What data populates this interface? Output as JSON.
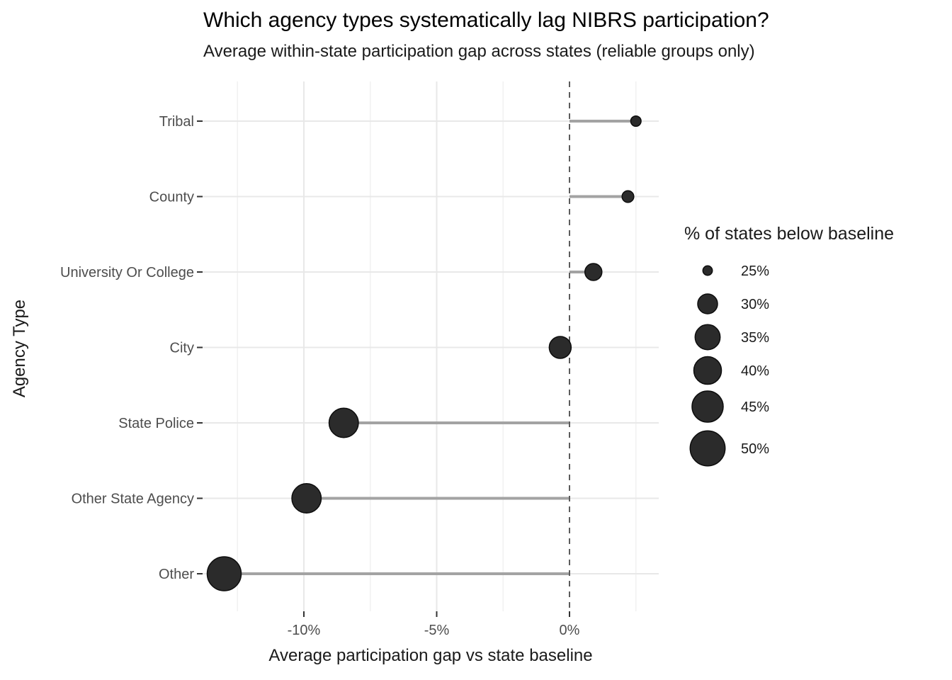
{
  "chart_data": {
    "type": "scatter",
    "subtype": "lollipop-dot-plot",
    "title": "Which agency types systematically lag NIBRS participation?",
    "subtitle": "Average within-state participation gap across states (reliable groups only)",
    "xlabel": "Average participation gap vs state baseline",
    "ylabel": "Agency Type",
    "xlim": [
      -13.8,
      3.4
    ],
    "baseline_value": 0,
    "grid": "on",
    "x_axis": {
      "major_ticks": [
        {
          "value": -10,
          "label": "-10%"
        },
        {
          "value": -5,
          "label": "-5%"
        },
        {
          "value": 0,
          "label": "0%"
        }
      ],
      "minor_ticks": [
        -12.5,
        -7.5,
        -2.5,
        2.5
      ]
    },
    "rows": [
      {
        "label": "Tribal",
        "gap_pct": 2.5,
        "pct_states_below": 25,
        "dot_radius_px": 7.3
      },
      {
        "label": "County",
        "gap_pct": 2.2,
        "pct_states_below": 26,
        "dot_radius_px": 8.3
      },
      {
        "label": "University Or College",
        "gap_pct": 0.9,
        "pct_states_below": 29,
        "dot_radius_px": 12
      },
      {
        "label": "City",
        "gap_pct": -0.35,
        "pct_states_below": 32,
        "dot_radius_px": 15.5
      },
      {
        "label": "State Police",
        "gap_pct": -8.5,
        "pct_states_below": 45,
        "dot_radius_px": 20.7
      },
      {
        "label": "Other State Agency",
        "gap_pct": -9.9,
        "pct_states_below": 44,
        "dot_radius_px": 20.7
      },
      {
        "label": "Other",
        "gap_pct": -13.0,
        "pct_states_below": 50,
        "dot_radius_px": 24
      }
    ],
    "legend": {
      "title": "% of states below baseline",
      "position": "right",
      "items": [
        {
          "label": "25%",
          "value": 25,
          "radius_px": 6.7
        },
        {
          "label": "30%",
          "value": 30,
          "radius_px": 14
        },
        {
          "label": "35%",
          "value": 35,
          "radius_px": 17.7
        },
        {
          "label": "40%",
          "value": 40,
          "radius_px": 19.5
        },
        {
          "label": "45%",
          "value": 45,
          "radius_px": 22
        },
        {
          "label": "50%",
          "value": 50,
          "radius_px": 24.7
        }
      ]
    },
    "colors": {
      "dot_fill": "#2b2b2b",
      "dot_stroke": "#0d0d0d",
      "stem": "#a3a3a3",
      "baseline_dash": "#5c5c5c",
      "grid_major": "#e8e8e8",
      "grid_minor": "#f1f1f1",
      "axis_tick": "#333333",
      "tick_label": "#4d4d4d",
      "text": "#1a1a1a",
      "background": "#ffffff"
    }
  }
}
